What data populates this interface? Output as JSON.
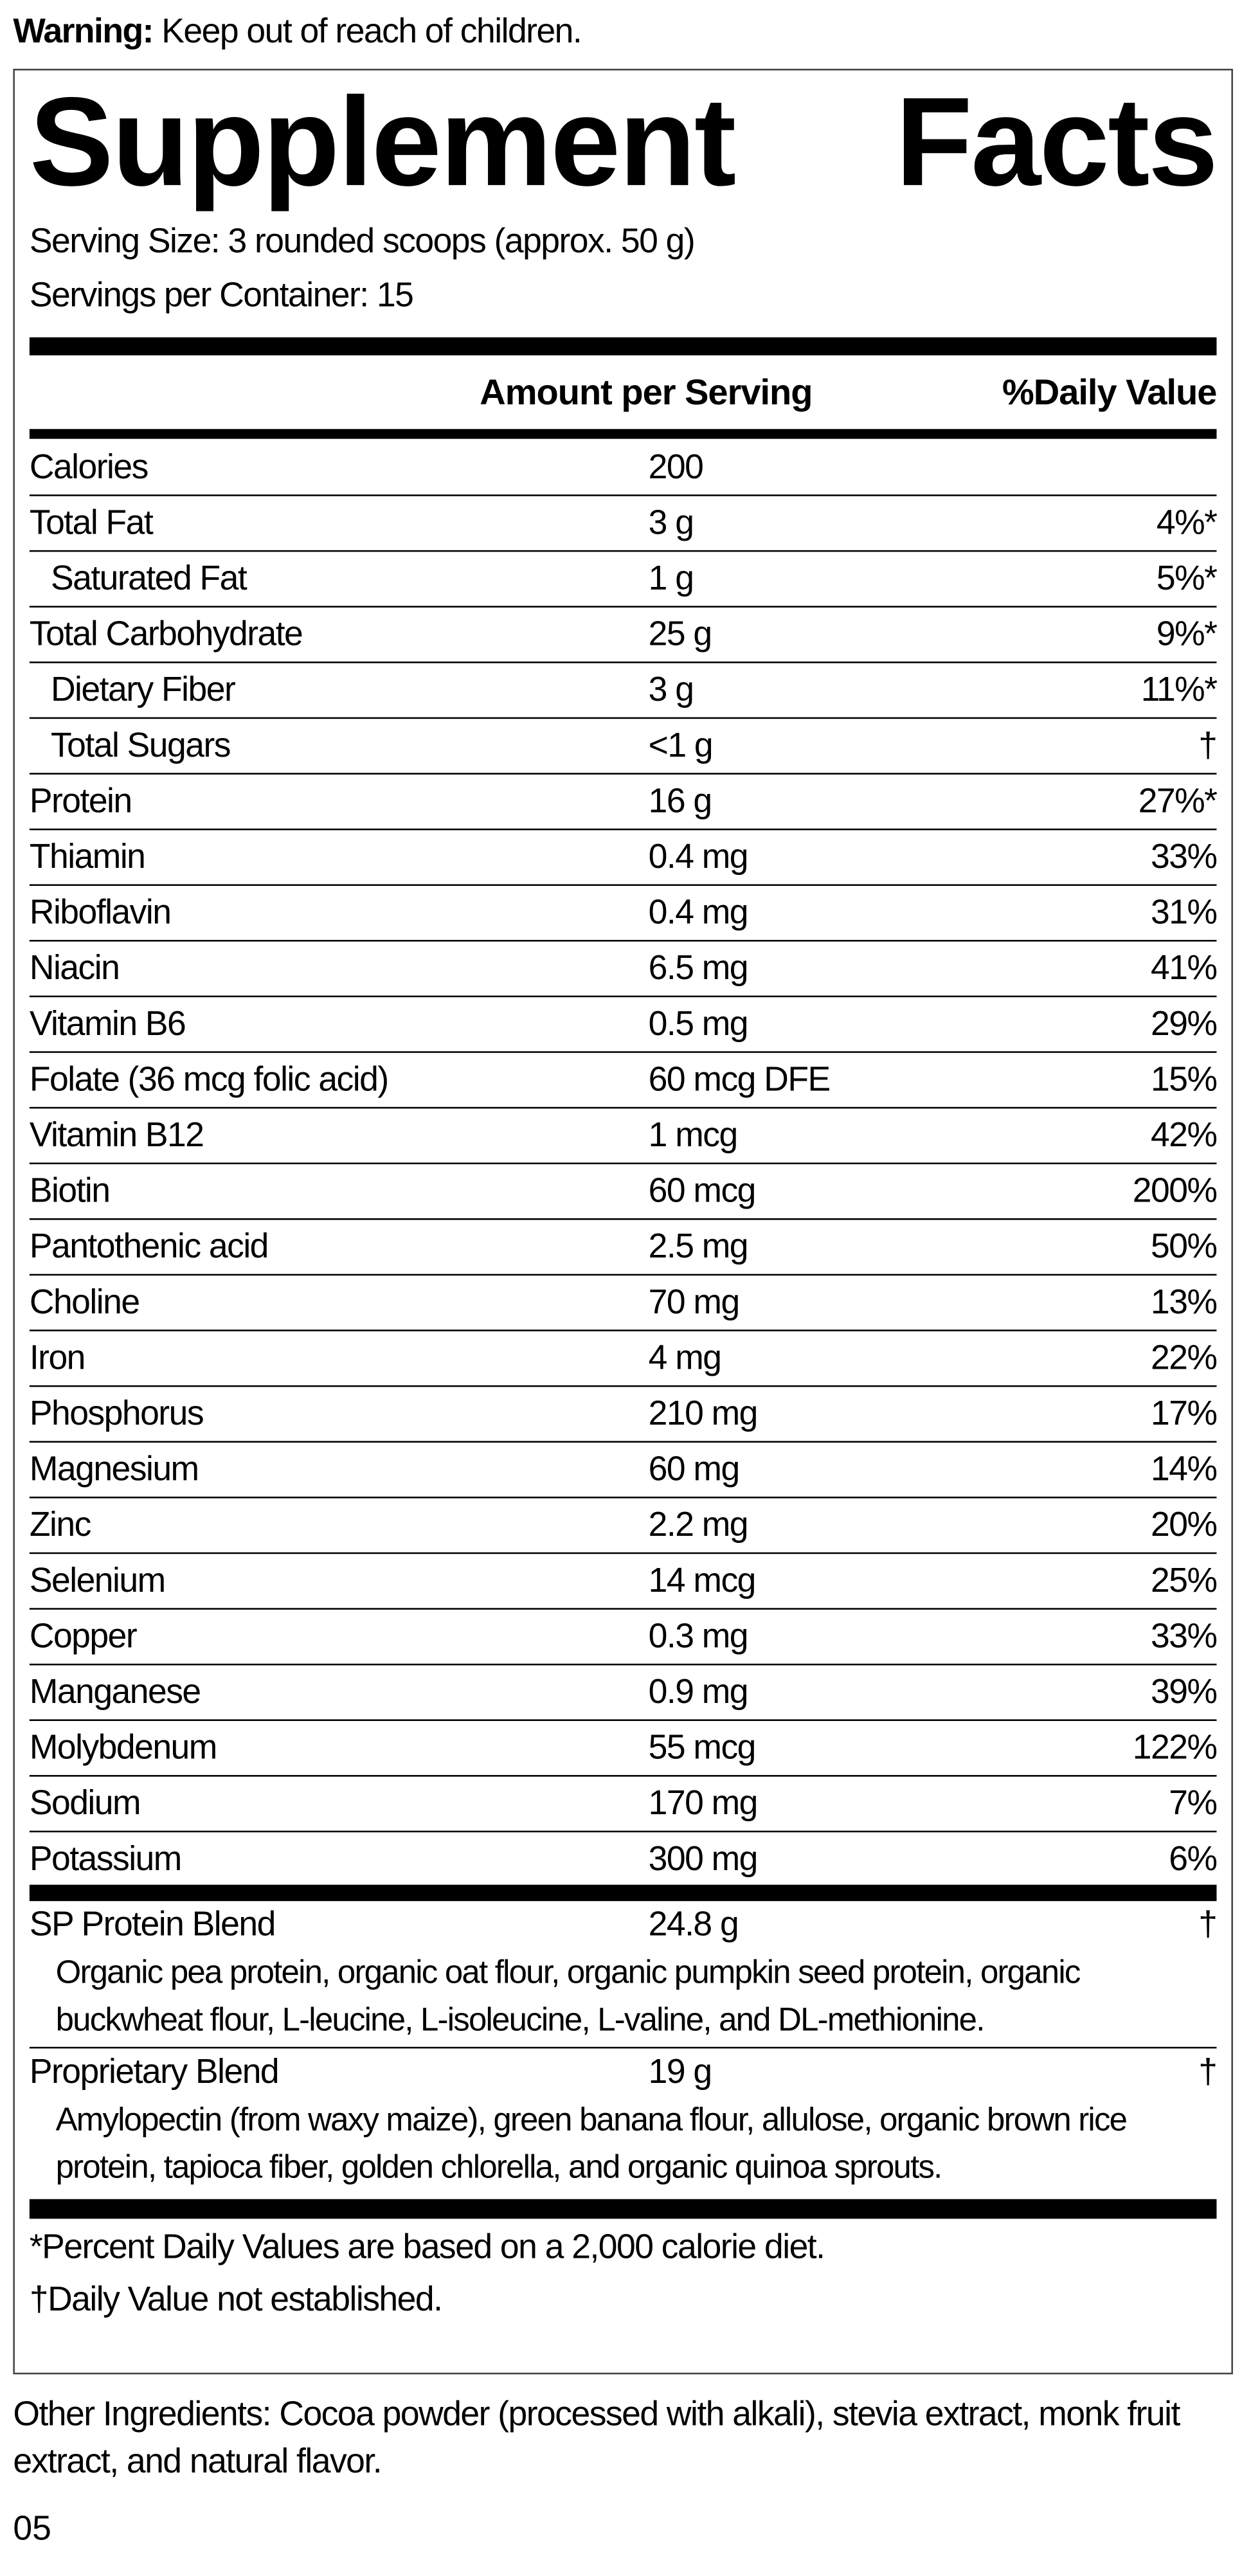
{
  "warning": {
    "label": "Warning:",
    "text": "Keep out of reach of children."
  },
  "title": "Supplement Facts",
  "serving_size": "Serving Size: 3 rounded scoops (approx. 50 g)",
  "servings_per_container": "Servings per Container: 15",
  "header": {
    "amount": "Amount per Serving",
    "dv": "%Daily Value"
  },
  "nutrients": [
    {
      "name": "Calories",
      "amount": "200"
    },
    {
      "name": "Total Fat",
      "amount": "3 g",
      "dv": "4%*",
      "sub": [
        {
          "name": "Saturated Fat",
          "amount": "1 g",
          "dv": "5%*"
        }
      ]
    },
    {
      "name": "Total Carbohydrate",
      "amount": "25 g",
      "dv": "9%*",
      "sub": [
        {
          "name": "Dietary Fiber",
          "amount": "3 g",
          "dv": "11%*"
        },
        {
          "name": "Total Sugars",
          "amount": "<1 g",
          "dv": "†"
        }
      ]
    },
    {
      "name": "Protein",
      "amount": "16 g",
      "dv": "27%*"
    },
    {
      "name": "Thiamin",
      "amount": "0.4 mg",
      "dv": "33%"
    },
    {
      "name": "Riboflavin",
      "amount": "0.4 mg",
      "dv": "31%"
    },
    {
      "name": "Niacin",
      "amount": "6.5 mg",
      "dv": "41%"
    },
    {
      "name": "Vitamin B6",
      "amount": "0.5 mg",
      "dv": "29%"
    },
    {
      "name": "Folate (36 mcg folic acid)",
      "amount": "60 mcg DFE",
      "dv": "15%"
    },
    {
      "name": "Vitamin B12",
      "amount": "1 mcg",
      "dv": "42%"
    },
    {
      "name": "Biotin",
      "amount": "60 mcg",
      "dv": "200%"
    },
    {
      "name": "Pantothenic acid",
      "amount": "2.5 mg",
      "dv": "50%"
    },
    {
      "name": "Choline",
      "amount": "70 mg",
      "dv": "13%"
    },
    {
      "name": "Iron",
      "amount": "4 mg",
      "dv": "22%"
    },
    {
      "name": "Phosphorus",
      "amount": "210 mg",
      "dv": "17%"
    },
    {
      "name": "Magnesium",
      "amount": "60 mg",
      "dv": "14%"
    },
    {
      "name": "Zinc",
      "amount": "2.2 mg",
      "dv": "20%"
    },
    {
      "name": "Selenium",
      "amount": "14 mcg",
      "dv": "25%"
    },
    {
      "name": "Copper",
      "amount": "0.3 mg",
      "dv": "33%"
    },
    {
      "name": "Manganese",
      "amount": "0.9 mg",
      "dv": "39%"
    },
    {
      "name": "Molybdenum",
      "amount": "55 mcg",
      "dv": "122%"
    },
    {
      "name": "Sodium",
      "amount": "170 mg",
      "dv": "7%"
    },
    {
      "name": "Potassium",
      "amount": "300 mg",
      "dv": "6%"
    }
  ],
  "blends": [
    {
      "name": "SP Protein Blend",
      "amount": "24.8 g",
      "dv": "†",
      "description": "Organic pea protein, organic oat flour, organic pumpkin seed protein, organic buckwheat flour, L-leucine, L-isoleucine, L-valine, and DL-methionine."
    },
    {
      "name": "Proprietary Blend",
      "amount": "19 g",
      "dv": "†",
      "description": "Amylopectin (from waxy maize), green banana flour, allulose, organic brown rice protein, tapioca fiber, golden chlorella, and organic quinoa sprouts."
    }
  ],
  "footnotes": [
    "*Percent Daily Values are based on a 2,000 calorie diet.",
    "†Daily Value not established."
  ],
  "other_ingredients": "Other Ingredients: Cocoa powder (processed with alkali), stevia extract, monk fruit extract, and natural flavor.",
  "code": "05"
}
